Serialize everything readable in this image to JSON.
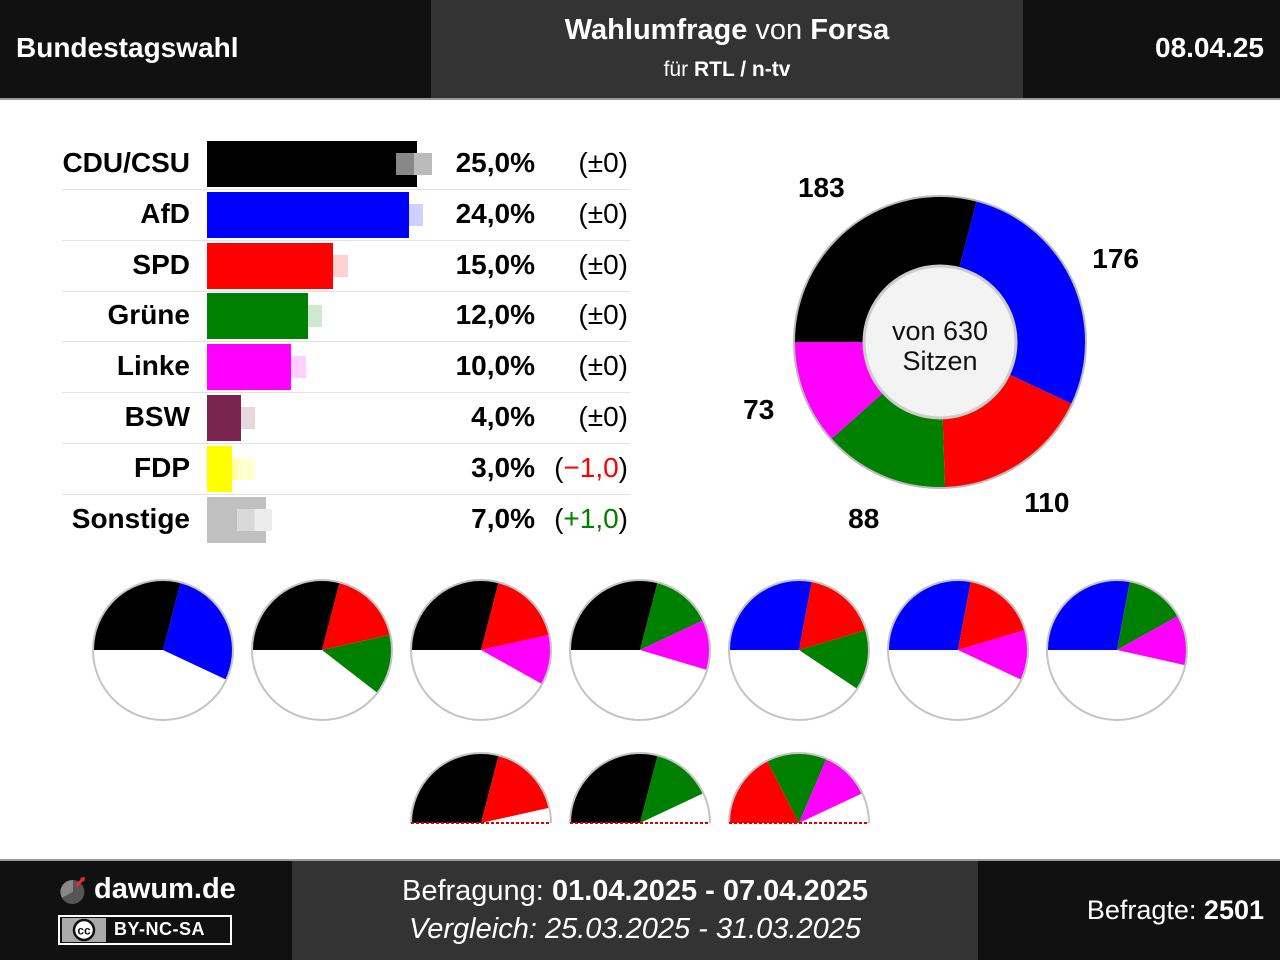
{
  "header": {
    "left": "Bundestagswahl",
    "title_main": "Wahlumfrage",
    "title_mid": "von",
    "title_institute": "Forsa",
    "sub_prefix": "für",
    "sub_client": "RTL / n-tv",
    "date": "08.04.25"
  },
  "colors": {
    "cdu": "#000000",
    "afd": "#0000ff",
    "spd": "#ff0000",
    "gruene": "#008000",
    "linke": "#ff00ff",
    "bsw": "#7b2450",
    "fdp": "#ffff00",
    "sonstige": "#c0c0c0"
  },
  "chart_data": [
    {
      "type": "bar",
      "categories": [
        "CDU/CSU",
        "AfD",
        "SPD",
        "Grüne",
        "Linke",
        "BSW",
        "FDP",
        "Sonstige"
      ],
      "series": [
        {
          "values": [
            25.0,
            24.0,
            15.0,
            12.0,
            10.0,
            4.0,
            3.0,
            7.0
          ]
        },
        {
          "values": [
            25.0,
            24.0,
            15.0,
            12.0,
            10.0,
            4.0,
            4.0,
            6.0
          ]
        }
      ],
      "value_labels": [
        "25,0%",
        "24,0%",
        "15,0%",
        "12,0%",
        "10,0%",
        "4,0%",
        "3,0%",
        "7,0%"
      ],
      "change_labels": [
        "(±0)",
        "(±0)",
        "(±0)",
        "(±0)",
        "(±0)",
        "(±0)",
        "(−1,0)",
        "(+1,0)"
      ],
      "change_signs": [
        0,
        0,
        0,
        0,
        0,
        0,
        -1,
        1
      ],
      "colors": [
        "#000000",
        "#0000ff",
        "#ff0000",
        "#008000",
        "#ff00ff",
        "#7b2450",
        "#ffff00",
        "#c0c0c0"
      ],
      "xlim": [
        0,
        30
      ]
    },
    {
      "type": "pie",
      "title": "von 630 Sitzen",
      "labels": [
        "CDU/CSU",
        "AfD",
        "SPD",
        "Grüne",
        "Linke"
      ],
      "values": [
        183,
        176,
        110,
        88,
        73
      ],
      "value_labels": [
        "183",
        "176",
        "110",
        "88",
        "73"
      ],
      "colors": [
        "#000000",
        "#0000ff",
        "#ff0000",
        "#008000",
        "#ff00ff"
      ],
      "total": 630
    }
  ],
  "coalitions": [
    {
      "parties": [
        {
          "seats": 183,
          "color": "#000000"
        },
        {
          "seats": 176,
          "color": "#0000ff"
        }
      ]
    },
    {
      "parties": [
        {
          "seats": 183,
          "color": "#000000"
        },
        {
          "seats": 110,
          "color": "#ff0000"
        },
        {
          "seats": 88,
          "color": "#008000"
        }
      ]
    },
    {
      "parties": [
        {
          "seats": 183,
          "color": "#000000"
        },
        {
          "seats": 110,
          "color": "#ff0000"
        },
        {
          "seats": 73,
          "color": "#ff00ff"
        }
      ]
    },
    {
      "parties": [
        {
          "seats": 183,
          "color": "#000000"
        },
        {
          "seats": 88,
          "color": "#008000"
        },
        {
          "seats": 73,
          "color": "#ff00ff"
        }
      ]
    },
    {
      "parties": [
        {
          "seats": 176,
          "color": "#0000ff"
        },
        {
          "seats": 110,
          "color": "#ff0000"
        },
        {
          "seats": 88,
          "color": "#008000"
        }
      ]
    },
    {
      "parties": [
        {
          "seats": 176,
          "color": "#0000ff"
        },
        {
          "seats": 110,
          "color": "#ff0000"
        },
        {
          "seats": 73,
          "color": "#ff00ff"
        }
      ]
    },
    {
      "parties": [
        {
          "seats": 176,
          "color": "#0000ff"
        },
        {
          "seats": 88,
          "color": "#008000"
        },
        {
          "seats": 73,
          "color": "#ff00ff"
        }
      ]
    },
    {
      "parties": [
        {
          "seats": 183,
          "color": "#000000"
        },
        {
          "seats": 110,
          "color": "#ff0000"
        }
      ]
    },
    {
      "parties": [
        {
          "seats": 183,
          "color": "#000000"
        },
        {
          "seats": 88,
          "color": "#008000"
        }
      ]
    },
    {
      "parties": [
        {
          "seats": 110,
          "color": "#ff0000"
        },
        {
          "seats": 88,
          "color": "#008000"
        },
        {
          "seats": 73,
          "color": "#ff00ff"
        }
      ]
    }
  ],
  "footer": {
    "site": "dawum.de",
    "license": "BY-NC-SA",
    "license_badge": "cc",
    "survey_label": "Befragung:",
    "survey_period": "01.04.2025 - 07.04.2025",
    "compare": "Vergleich: 25.03.2025 - 31.03.2025",
    "respondents_label": "Befragte:",
    "respondents": "2501"
  }
}
